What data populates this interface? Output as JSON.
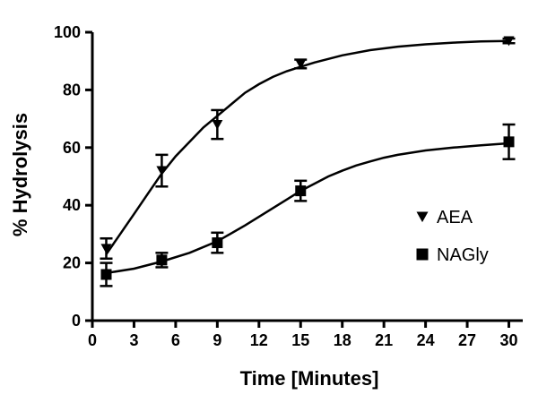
{
  "chart_data": {
    "type": "scatter",
    "xlabel": "Time [Minutes]",
    "ylabel": "% Hydrolysis",
    "xlim": [
      0,
      31
    ],
    "ylim": [
      0,
      100
    ],
    "x_ticks": [
      0,
      3,
      6,
      9,
      12,
      15,
      18,
      21,
      24,
      27,
      30
    ],
    "y_ticks": [
      0,
      20,
      40,
      60,
      80,
      100
    ],
    "grid": false,
    "legend": "center-right",
    "series": [
      {
        "name": "AEA",
        "marker": "triangle-down",
        "color": "#000000",
        "x": [
          1,
          5,
          9,
          15,
          30
        ],
        "y": [
          25,
          52,
          68,
          89,
          97
        ],
        "err": [
          3.5,
          5.5,
          5,
          1.5,
          0.8
        ],
        "fit": [
          [
            1,
            23
          ],
          [
            2,
            30
          ],
          [
            3,
            37
          ],
          [
            4,
            44
          ],
          [
            5,
            51
          ],
          [
            6,
            57
          ],
          [
            7,
            62
          ],
          [
            8,
            67
          ],
          [
            9,
            71
          ],
          [
            10,
            75
          ],
          [
            11,
            79
          ],
          [
            12,
            82
          ],
          [
            13,
            84.5
          ],
          [
            14,
            86.5
          ],
          [
            15,
            88
          ],
          [
            16,
            89.5
          ],
          [
            18,
            92
          ],
          [
            20,
            93.8
          ],
          [
            22,
            95
          ],
          [
            24,
            95.8
          ],
          [
            26,
            96.4
          ],
          [
            28,
            96.8
          ],
          [
            30,
            97
          ]
        ]
      },
      {
        "name": "NAGly",
        "marker": "square",
        "color": "#000000",
        "x": [
          1,
          5,
          9,
          15,
          30
        ],
        "y": [
          16,
          21,
          27,
          45,
          62
        ],
        "err": [
          4,
          2.5,
          3.5,
          3.5,
          6
        ],
        "fit": [
          [
            1,
            16.5
          ],
          [
            3,
            18
          ],
          [
            5,
            20.5
          ],
          [
            7,
            23.5
          ],
          [
            9,
            27.5
          ],
          [
            11,
            33
          ],
          [
            12,
            36
          ],
          [
            13,
            39
          ],
          [
            14,
            42
          ],
          [
            15,
            45
          ],
          [
            16,
            47.5
          ],
          [
            17,
            50
          ],
          [
            18,
            52
          ],
          [
            19,
            53.8
          ],
          [
            20,
            55.2
          ],
          [
            21,
            56.5
          ],
          [
            22,
            57.5
          ],
          [
            24,
            59
          ],
          [
            26,
            60
          ],
          [
            28,
            60.8
          ],
          [
            30,
            61.5
          ]
        ]
      }
    ]
  }
}
